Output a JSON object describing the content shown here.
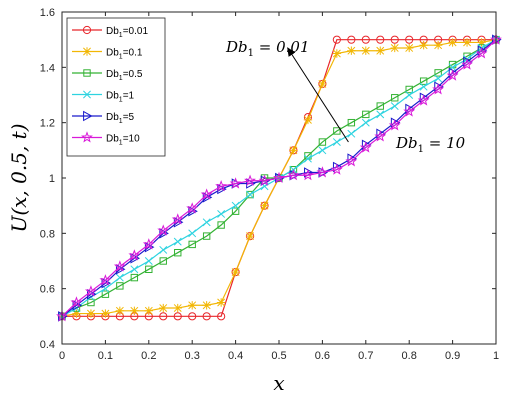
{
  "chart_data": {
    "type": "line",
    "xlabel": "x",
    "ylabel": "U(x, 0.5, t)",
    "xlim": [
      0,
      1
    ],
    "ylim": [
      0.4,
      1.6
    ],
    "xticks": [
      "0",
      "0.1",
      "0.2",
      "0.3",
      "0.4",
      "0.5",
      "0.6",
      "0.7",
      "0.8",
      "0.9",
      "1"
    ],
    "yticks": [
      "0.4",
      "0.6",
      "0.8",
      "1",
      "1.2",
      "1.4",
      "1.6"
    ],
    "grid": false,
    "legend_position": "top-left",
    "x": [
      0,
      0.0333,
      0.0667,
      0.1,
      0.1333,
      0.1667,
      0.2,
      0.2333,
      0.2667,
      0.3,
      0.3333,
      0.3667,
      0.4,
      0.4333,
      0.4667,
      0.5,
      0.5333,
      0.5667,
      0.6,
      0.6333,
      0.6667,
      0.7,
      0.7333,
      0.7667,
      0.8,
      0.8333,
      0.8667,
      0.9,
      0.9333,
      0.9667,
      1
    ],
    "series": [
      {
        "name": "Db_1=0.01",
        "color": "#e8262b",
        "marker": "circle",
        "values": [
          0.5,
          0.5,
          0.5,
          0.5,
          0.5,
          0.5,
          0.5,
          0.5,
          0.5,
          0.5,
          0.5,
          0.5,
          0.66,
          0.79,
          0.9,
          1.0,
          1.1,
          1.22,
          1.34,
          1.5,
          1.5,
          1.5,
          1.5,
          1.5,
          1.5,
          1.5,
          1.5,
          1.5,
          1.5,
          1.5,
          1.5
        ]
      },
      {
        "name": "Db_1=0.1",
        "color": "#f2b705",
        "marker": "star",
        "values": [
          0.5,
          0.51,
          0.51,
          0.51,
          0.52,
          0.52,
          0.52,
          0.53,
          0.53,
          0.54,
          0.54,
          0.55,
          0.66,
          0.79,
          0.9,
          1.0,
          1.1,
          1.21,
          1.34,
          1.45,
          1.46,
          1.46,
          1.46,
          1.47,
          1.47,
          1.48,
          1.48,
          1.49,
          1.49,
          1.49,
          1.5
        ]
      },
      {
        "name": "Db_1=0.5",
        "color": "#33b233",
        "marker": "square",
        "values": [
          0.5,
          0.53,
          0.55,
          0.58,
          0.61,
          0.64,
          0.67,
          0.7,
          0.73,
          0.76,
          0.79,
          0.83,
          0.88,
          0.94,
          1.0,
          1.0,
          1.03,
          1.08,
          1.13,
          1.17,
          1.2,
          1.23,
          1.26,
          1.29,
          1.32,
          1.35,
          1.38,
          1.41,
          1.44,
          1.47,
          1.5
        ]
      },
      {
        "name": "Db_1=1",
        "color": "#2ed3e0",
        "marker": "x",
        "values": [
          0.5,
          0.53,
          0.57,
          0.6,
          0.64,
          0.67,
          0.7,
          0.74,
          0.77,
          0.8,
          0.84,
          0.87,
          0.9,
          0.94,
          0.97,
          1.0,
          1.03,
          1.07,
          1.1,
          1.13,
          1.16,
          1.2,
          1.23,
          1.26,
          1.3,
          1.33,
          1.36,
          1.4,
          1.43,
          1.47,
          1.5
        ]
      },
      {
        "name": "Db_1=5",
        "color": "#1a1acc",
        "marker": "triangle-right",
        "values": [
          0.5,
          0.54,
          0.58,
          0.62,
          0.67,
          0.71,
          0.75,
          0.8,
          0.84,
          0.88,
          0.93,
          0.96,
          0.98,
          0.98,
          0.99,
          1.0,
          1.01,
          1.02,
          1.02,
          1.04,
          1.07,
          1.12,
          1.16,
          1.2,
          1.25,
          1.29,
          1.33,
          1.38,
          1.42,
          1.46,
          1.5
        ]
      },
      {
        "name": "Db_1=10",
        "color": "#d91ad9",
        "marker": "star5",
        "values": [
          0.5,
          0.55,
          0.59,
          0.63,
          0.68,
          0.72,
          0.76,
          0.81,
          0.85,
          0.89,
          0.94,
          0.97,
          0.98,
          0.99,
          0.99,
          1.0,
          1.01,
          1.01,
          1.02,
          1.03,
          1.06,
          1.11,
          1.15,
          1.19,
          1.24,
          1.28,
          1.32,
          1.37,
          1.41,
          1.45,
          1.5
        ]
      }
    ],
    "annotations": [
      {
        "text": "Db_1 = 0.01",
        "arrow": {
          "from": [
            0.66,
            1.13
          ],
          "to": [
            0.52,
            1.47
          ]
        }
      },
      {
        "text": "Db_1 = 10"
      }
    ]
  }
}
